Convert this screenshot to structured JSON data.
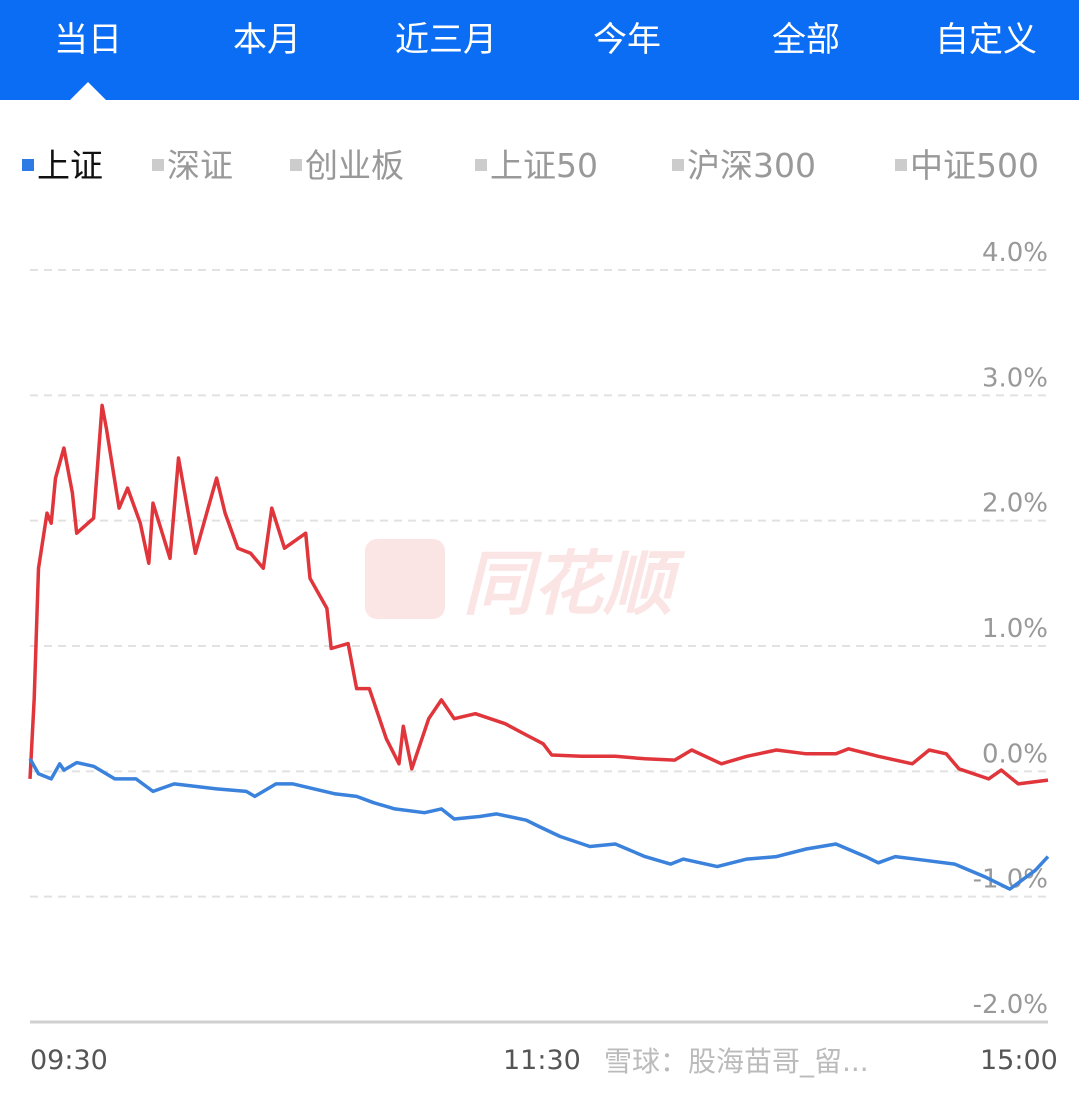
{
  "tabs": [
    "当日",
    "本月",
    "近三月",
    "今年",
    "全部",
    "自定义"
  ],
  "active_tab": 0,
  "legend": [
    "上证",
    "深证",
    "创业板",
    "上证50",
    "沪深300",
    "中证500"
  ],
  "active_legend": 0,
  "watermark_logo": "同花顺",
  "watermark_text": "雪球：股海苗哥_留...",
  "colors": {
    "header": "#0b6df4",
    "red_series": "#e0353b",
    "blue_series": "#3b82dc",
    "grid": "#dddddd"
  },
  "chart_data": {
    "type": "line",
    "ylim": [
      -2.0,
      4.0
    ],
    "yticks": [
      "4.0%",
      "3.0%",
      "2.0%",
      "1.0%",
      "0.0%",
      "-1.0%",
      "-2.0%"
    ],
    "ytick_values": [
      4,
      3,
      2,
      1,
      0,
      -1,
      -2
    ],
    "xticks": [
      "09:30",
      "11:30",
      "15:00"
    ],
    "grid": "horizontal dashed",
    "series": [
      {
        "color": "#e0353b",
        "points": [
          [
            "09:30",
            -0.06
          ],
          [
            "09:31",
            0.58
          ],
          [
            "09:32",
            1.62
          ],
          [
            "09:34",
            2.06
          ],
          [
            "09:35",
            1.98
          ],
          [
            "09:36",
            2.34
          ],
          [
            "09:38",
            2.58
          ],
          [
            "09:40",
            2.22
          ],
          [
            "09:41",
            1.9
          ],
          [
            "09:45",
            2.02
          ],
          [
            "09:47",
            2.92
          ],
          [
            "09:48",
            2.74
          ],
          [
            "09:51",
            2.1
          ],
          [
            "09:53",
            2.26
          ],
          [
            "09:56",
            1.98
          ],
          [
            "09:58",
            1.66
          ],
          [
            "09:59",
            2.14
          ],
          [
            "10:03",
            1.7
          ],
          [
            "10:05",
            2.5
          ],
          [
            "10:09",
            1.74
          ],
          [
            "10:12",
            2.1
          ],
          [
            "10:14",
            2.34
          ],
          [
            "10:16",
            2.06
          ],
          [
            "10:19",
            1.78
          ],
          [
            "10:22",
            1.74
          ],
          [
            "10:25",
            1.62
          ],
          [
            "10:27",
            2.1
          ],
          [
            "10:30",
            1.78
          ],
          [
            "10:35",
            1.9
          ],
          [
            "10:36",
            1.54
          ],
          [
            "10:40",
            1.3
          ],
          [
            "10:41",
            0.98
          ],
          [
            "10:45",
            1.02
          ],
          [
            "10:47",
            0.66
          ],
          [
            "10:50",
            0.66
          ],
          [
            "10:54",
            0.26
          ],
          [
            "10:57",
            0.06
          ],
          [
            "10:58",
            0.36
          ],
          [
            "11:00",
            0.02
          ],
          [
            "11:04",
            0.42
          ],
          [
            "11:07",
            0.57
          ],
          [
            "11:10",
            0.42
          ],
          [
            "11:15",
            0.46
          ],
          [
            "11:22",
            0.38
          ],
          [
            "11:27",
            0.29
          ],
          [
            "13:01",
            0.22
          ],
          [
            "13:03",
            0.13
          ],
          [
            "13:10",
            0.12
          ],
          [
            "13:18",
            0.12
          ],
          [
            "13:25",
            0.1
          ],
          [
            "13:32",
            0.09
          ],
          [
            "13:36",
            0.17
          ],
          [
            "13:43",
            0.06
          ],
          [
            "13:49",
            0.12
          ],
          [
            "13:56",
            0.17
          ],
          [
            "14:03",
            0.14
          ],
          [
            "14:10",
            0.14
          ],
          [
            "14:13",
            0.18
          ],
          [
            "14:20",
            0.12
          ],
          [
            "14:28",
            0.06
          ],
          [
            "14:32",
            0.17
          ],
          [
            "14:36",
            0.14
          ],
          [
            "14:39",
            0.02
          ],
          [
            "14:46",
            -0.06
          ],
          [
            "14:49",
            0.01
          ],
          [
            "14:53",
            -0.1
          ],
          [
            "15:00",
            -0.07
          ]
        ]
      },
      {
        "color": "#3b82dc",
        "points": [
          [
            "09:30",
            0.1
          ],
          [
            "09:32",
            -0.02
          ],
          [
            "09:35",
            -0.06
          ],
          [
            "09:37",
            0.06
          ],
          [
            "09:38",
            0.01
          ],
          [
            "09:41",
            0.07
          ],
          [
            "09:45",
            0.04
          ],
          [
            "09:50",
            -0.06
          ],
          [
            "09:55",
            -0.06
          ],
          [
            "09:59",
            -0.16
          ],
          [
            "10:04",
            -0.1
          ],
          [
            "10:09",
            -0.12
          ],
          [
            "10:14",
            -0.14
          ],
          [
            "10:21",
            -0.16
          ],
          [
            "10:23",
            -0.2
          ],
          [
            "10:28",
            -0.1
          ],
          [
            "10:32",
            -0.1
          ],
          [
            "10:37",
            -0.14
          ],
          [
            "10:42",
            -0.18
          ],
          [
            "10:47",
            -0.2
          ],
          [
            "10:51",
            -0.25
          ],
          [
            "10:56",
            -0.3
          ],
          [
            "11:03",
            -0.33
          ],
          [
            "11:07",
            -0.3
          ],
          [
            "11:10",
            -0.38
          ],
          [
            "11:16",
            -0.36
          ],
          [
            "11:20",
            -0.34
          ],
          [
            "11:27",
            -0.39
          ],
          [
            "11:30",
            -0.44
          ],
          [
            "13:05",
            -0.52
          ],
          [
            "13:12",
            -0.6
          ],
          [
            "13:18",
            -0.58
          ],
          [
            "13:25",
            -0.68
          ],
          [
            "13:31",
            -0.74
          ],
          [
            "13:34",
            -0.7
          ],
          [
            "13:42",
            -0.76
          ],
          [
            "13:49",
            -0.7
          ],
          [
            "13:56",
            -0.68
          ],
          [
            "14:03",
            -0.62
          ],
          [
            "14:10",
            -0.58
          ],
          [
            "14:17",
            -0.68
          ],
          [
            "14:20",
            -0.73
          ],
          [
            "14:24",
            -0.68
          ],
          [
            "14:31",
            -0.71
          ],
          [
            "14:38",
            -0.74
          ],
          [
            "14:45",
            -0.84
          ],
          [
            "14:51",
            -0.94
          ],
          [
            "14:57",
            -0.79
          ],
          [
            "15:00",
            -0.68
          ]
        ]
      }
    ]
  }
}
